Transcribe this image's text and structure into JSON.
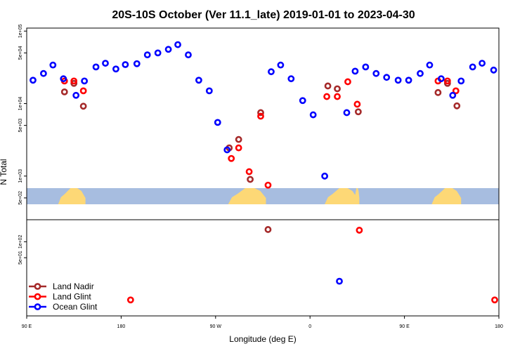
{
  "chart_data": {
    "type": "scatter",
    "title": "20S-10S October (Ver 11.1_late)   2019-01-01 to 2023-04-30",
    "xlabel": "Longitude (deg E)",
    "ylabel": "N Total",
    "xlim": [
      90,
      540
    ],
    "x_ticks": [
      {
        "value": 90,
        "label": "90 E"
      },
      {
        "value": 180,
        "label": "180"
      },
      {
        "value": 270,
        "label": "90 W"
      },
      {
        "value": 360,
        "label": "0"
      },
      {
        "value": 450,
        "label": "90 E"
      },
      {
        "value": 540,
        "label": "180"
      }
    ],
    "y_scale": "log",
    "top_panel": {
      "ylim": [
        250,
        110000
      ],
      "y_ticks": [
        {
          "value": 500,
          "label": "5e+02"
        },
        {
          "value": 1000,
          "label": "1e+03"
        },
        {
          "value": 5000,
          "label": "5e+03"
        },
        {
          "value": 10000,
          "label": "1e+04"
        },
        {
          "value": 50000,
          "label": "5e+04"
        },
        {
          "value": 100000,
          "label": "1e+05"
        }
      ]
    },
    "bottom_panel": {
      "ylim": [
        4,
        260
      ],
      "y_ticks": [
        {
          "value": 50,
          "label": "5e+01"
        },
        {
          "value": 100,
          "label": "1e+02"
        }
      ]
    },
    "legend_position": "bottom-left",
    "series": [
      {
        "name": "Land Nadir",
        "color": "#a52a2a",
        "top_points": [
          {
            "x": 126,
            "y": 14500
          },
          {
            "x": 135,
            "y": 19000
          },
          {
            "x": 144,
            "y": 9200
          },
          {
            "x": 283,
            "y": 2450
          },
          {
            "x": 292,
            "y": 3200
          },
          {
            "x": 303,
            "y": 900
          },
          {
            "x": 313,
            "y": 7500
          },
          {
            "x": 377,
            "y": 17500
          },
          {
            "x": 386,
            "y": 16000
          },
          {
            "x": 406,
            "y": 7700
          },
          {
            "x": 482,
            "y": 14200
          },
          {
            "x": 491,
            "y": 19000
          },
          {
            "x": 500,
            "y": 9300
          }
        ],
        "bottom_points": [
          {
            "x": 320,
            "y": 170
          }
        ]
      },
      {
        "name": "Land Glint",
        "color": "#ff0000",
        "top_points": [
          {
            "x": 126,
            "y": 20500
          },
          {
            "x": 135,
            "y": 20500
          },
          {
            "x": 144,
            "y": 15000
          },
          {
            "x": 285,
            "y": 1750
          },
          {
            "x": 292,
            "y": 2450
          },
          {
            "x": 302,
            "y": 1150
          },
          {
            "x": 313,
            "y": 6700
          },
          {
            "x": 320,
            "y": 750
          },
          {
            "x": 376,
            "y": 12500
          },
          {
            "x": 386,
            "y": 12500
          },
          {
            "x": 396,
            "y": 20000
          },
          {
            "x": 405,
            "y": 9800
          },
          {
            "x": 482,
            "y": 20500
          },
          {
            "x": 491,
            "y": 20500
          },
          {
            "x": 499,
            "y": 15000
          }
        ],
        "bottom_points": [
          {
            "x": 189,
            "y": 8
          },
          {
            "x": 407,
            "y": 165
          },
          {
            "x": 536,
            "y": 8
          }
        ]
      },
      {
        "name": "Ocean Glint",
        "color": "#0000ff",
        "top_points": [
          {
            "x": 96,
            "y": 21000
          },
          {
            "x": 106,
            "y": 26000
          },
          {
            "x": 115,
            "y": 34000
          },
          {
            "x": 125,
            "y": 22000
          },
          {
            "x": 137,
            "y": 13000
          },
          {
            "x": 145,
            "y": 20500
          },
          {
            "x": 156,
            "y": 32000
          },
          {
            "x": 165,
            "y": 36000
          },
          {
            "x": 175,
            "y": 30000
          },
          {
            "x": 184,
            "y": 34500
          },
          {
            "x": 195,
            "y": 35500
          },
          {
            "x": 205,
            "y": 47000
          },
          {
            "x": 215,
            "y": 50000
          },
          {
            "x": 225,
            "y": 56000
          },
          {
            "x": 234,
            "y": 65000
          },
          {
            "x": 244,
            "y": 47000
          },
          {
            "x": 254,
            "y": 21000
          },
          {
            "x": 264,
            "y": 15000
          },
          {
            "x": 272,
            "y": 5500
          },
          {
            "x": 281,
            "y": 2300
          },
          {
            "x": 323,
            "y": 27500
          },
          {
            "x": 332,
            "y": 34000
          },
          {
            "x": 342,
            "y": 22000
          },
          {
            "x": 353,
            "y": 11000
          },
          {
            "x": 363,
            "y": 7000
          },
          {
            "x": 374,
            "y": 1000
          },
          {
            "x": 395,
            "y": 7500
          },
          {
            "x": 403,
            "y": 28000
          },
          {
            "x": 413,
            "y": 32000
          },
          {
            "x": 423,
            "y": 26000
          },
          {
            "x": 433,
            "y": 23000
          },
          {
            "x": 444,
            "y": 21000
          },
          {
            "x": 454,
            "y": 21000
          },
          {
            "x": 465,
            "y": 26000
          },
          {
            "x": 474,
            "y": 34000
          },
          {
            "x": 485,
            "y": 22000
          },
          {
            "x": 496,
            "y": 13000
          },
          {
            "x": 504,
            "y": 20500
          },
          {
            "x": 515,
            "y": 32000
          },
          {
            "x": 524,
            "y": 36000
          },
          {
            "x": 535,
            "y": 29000
          }
        ],
        "bottom_points": [
          {
            "x": 388,
            "y": 18
          }
        ]
      }
    ],
    "land_strip": {
      "base_color": "#a7bde0",
      "land_color": "#fdd876",
      "land_ranges": [
        [
          120,
          146
        ],
        [
          282,
          318
        ],
        [
          374,
          405
        ],
        [
          402,
          407
        ],
        [
          476,
          504
        ]
      ]
    }
  }
}
